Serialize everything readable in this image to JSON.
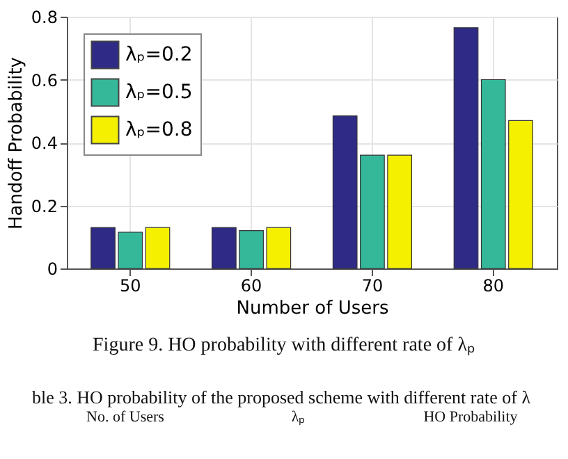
{
  "chart_data": {
    "type": "bar",
    "xlabel": "Number of Users",
    "ylabel": "Handoff Probability",
    "categories": [
      "50",
      "60",
      "70",
      "80"
    ],
    "series": [
      {
        "name": "λₚ=0.2",
        "color": "#2e2a86",
        "values": [
          0.13,
          0.13,
          0.485,
          0.765
        ]
      },
      {
        "name": "λₚ=0.5",
        "color": "#35b89a",
        "values": [
          0.115,
          0.12,
          0.36,
          0.6
        ]
      },
      {
        "name": "λₚ=0.8",
        "color": "#f5f000",
        "values": [
          0.13,
          0.13,
          0.36,
          0.47
        ]
      }
    ],
    "ylim": [
      0,
      0.8
    ],
    "yticks": [
      0,
      0.2,
      0.4,
      0.6,
      0.8
    ],
    "grid": true,
    "legend": "top left",
    "annotations": [
      "Figure 9. HO probability with different rate of  λₚ",
      "ble 3. HO probability of the proposed scheme with different rate of  λ",
      "No. of Users",
      "λₚ",
      "HO Probability"
    ]
  }
}
